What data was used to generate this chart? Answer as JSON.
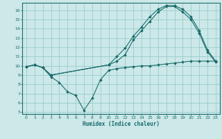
{
  "xlabel": "Humidex (Indice chaleur)",
  "background_color": "#cce8e8",
  "grid_color": "#99cccc",
  "line_color": "#1a6b6b",
  "xlim": [
    -0.5,
    23.5
  ],
  "ylim": [
    4.8,
    16.8
  ],
  "yticks": [
    5,
    6,
    7,
    8,
    9,
    10,
    11,
    12,
    13,
    14,
    15,
    16
  ],
  "xticks": [
    0,
    1,
    2,
    3,
    4,
    5,
    6,
    7,
    8,
    9,
    10,
    11,
    12,
    13,
    14,
    15,
    16,
    17,
    18,
    19,
    20,
    21,
    22,
    23
  ],
  "curve1_x": [
    0,
    1,
    2,
    3,
    4,
    5,
    6,
    7,
    8,
    9,
    10,
    11,
    12,
    13,
    14,
    15,
    16,
    17,
    18,
    19,
    20,
    21,
    22,
    23
  ],
  "curve1_y": [
    9.9,
    10.1,
    9.8,
    8.8,
    8.2,
    7.2,
    6.8,
    5.2,
    6.5,
    8.5,
    9.5,
    9.7,
    9.8,
    9.9,
    10.0,
    10.0,
    10.1,
    10.2,
    10.3,
    10.4,
    10.5,
    10.5,
    10.5,
    10.5
  ],
  "curve2_x": [
    0,
    1,
    2,
    3,
    10,
    11,
    12,
    13,
    14,
    15,
    16,
    17,
    18,
    19,
    20,
    21,
    22,
    23
  ],
  "curve2_y": [
    9.9,
    10.1,
    9.8,
    9.0,
    10.1,
    11.0,
    11.9,
    13.2,
    14.2,
    15.3,
    16.1,
    16.5,
    16.5,
    16.1,
    15.3,
    13.8,
    11.7,
    10.5
  ],
  "curve3_x": [
    0,
    1,
    2,
    3,
    10,
    11,
    12,
    13,
    14,
    15,
    16,
    17,
    18,
    19,
    20,
    21,
    22,
    23
  ],
  "curve3_y": [
    9.9,
    10.1,
    9.8,
    9.0,
    10.1,
    10.5,
    11.2,
    12.8,
    13.8,
    14.8,
    15.8,
    16.4,
    16.4,
    15.8,
    15.0,
    13.5,
    11.5,
    10.4
  ]
}
